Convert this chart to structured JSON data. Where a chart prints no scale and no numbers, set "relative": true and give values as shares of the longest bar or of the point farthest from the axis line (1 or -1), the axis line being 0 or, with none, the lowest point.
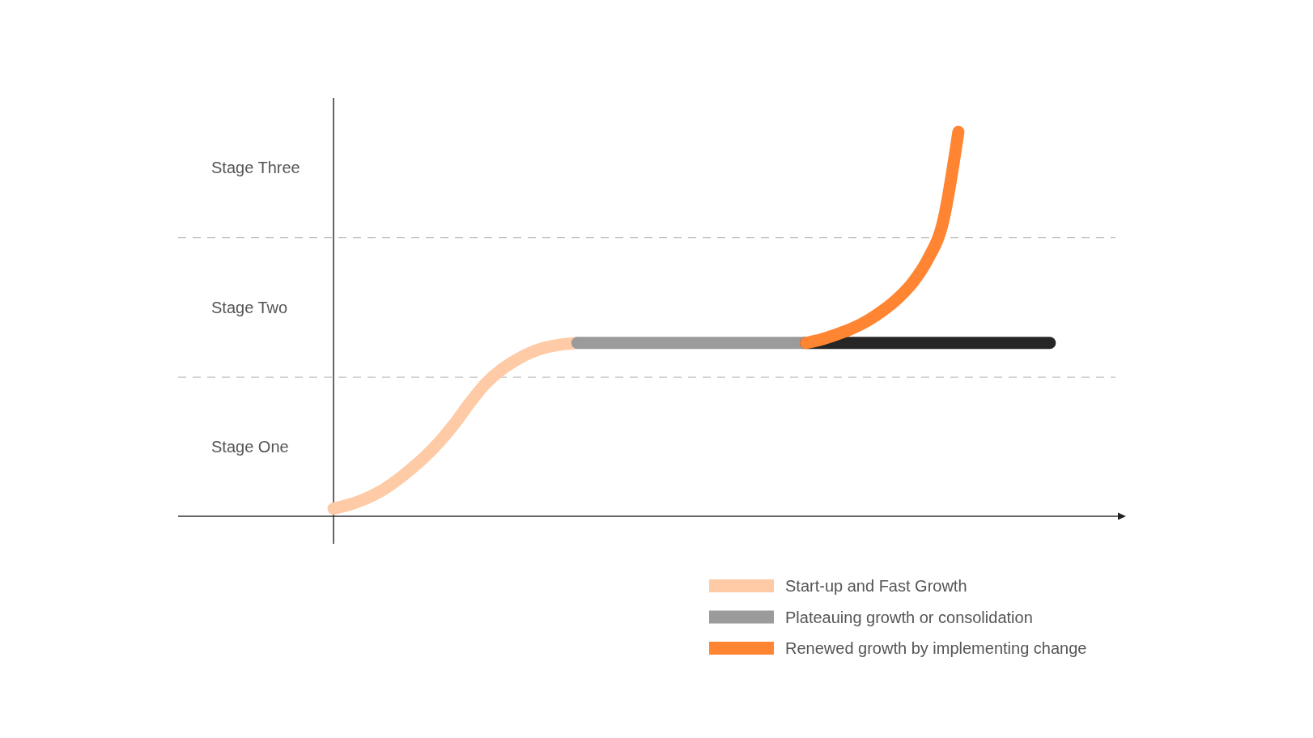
{
  "chart_data": {
    "type": "line",
    "relative": true,
    "categories": [
      null,
      null,
      null,
      null,
      null,
      null,
      null,
      null,
      null,
      null,
      null,
      null,
      null,
      null,
      null,
      null,
      null,
      null,
      null,
      null,
      null,
      null,
      null,
      null,
      null,
      null,
      null,
      null,
      null,
      null,
      null,
      null,
      null,
      null,
      null,
      null,
      null,
      null,
      null,
      null,
      null,
      null,
      null,
      null,
      null,
      null,
      null,
      null,
      null,
      null,
      null,
      null,
      null
    ],
    "series": [
      {
        "name": "Start-up and Fast Growth",
        "color": "#ffcaa6",
        "values": [
          0.02,
          0.03,
          0.044,
          0.063,
          0.089,
          0.12,
          0.155,
          0.196,
          0.244,
          0.298,
          0.346,
          0.381,
          0.407,
          0.427,
          0.44,
          0.447,
          0.451,
          null,
          null,
          null,
          null,
          null,
          null,
          null,
          null,
          null,
          null,
          null,
          null,
          null,
          null,
          null,
          null,
          null,
          null,
          null,
          null,
          null,
          null,
          null,
          null,
          null,
          null,
          null,
          null,
          null,
          null,
          null,
          null,
          null,
          null,
          null,
          null
        ]
      },
      {
        "name": "Plateauing growth or consolidation",
        "color": "#9b9b9b",
        "values": [
          null,
          null,
          null,
          null,
          null,
          null,
          null,
          null,
          null,
          null,
          null,
          null,
          null,
          null,
          null,
          null,
          0.451,
          0.451,
          0.451,
          0.451,
          0.451,
          0.451,
          0.451,
          0.451,
          0.451,
          0.451,
          0.451,
          0.451,
          0.451,
          0.451,
          0.451,
          0.451,
          null,
          null,
          null,
          null,
          null,
          null,
          null,
          null,
          null,
          null,
          null,
          null,
          null,
          null,
          null,
          null,
          null,
          null,
          null,
          null,
          null
        ]
      },
      {
        "color": "#262626",
        "values": [
          null,
          null,
          null,
          null,
          null,
          null,
          null,
          null,
          null,
          null,
          null,
          null,
          null,
          null,
          null,
          null,
          null,
          null,
          null,
          null,
          null,
          null,
          null,
          null,
          null,
          null,
          null,
          null,
          null,
          null,
          null,
          0.451,
          0.451,
          0.451,
          0.451,
          0.451,
          0.451,
          0.451,
          0.451,
          0.451,
          0.451,
          0.451,
          0.451,
          0.451,
          0.451,
          0.451,
          0.451,
          0.451,
          null,
          null,
          null,
          null,
          null
        ]
      },
      {
        "name": "Renewed growth by implementing change",
        "color": "#ff8533",
        "values": [
          null,
          null,
          null,
          null,
          null,
          null,
          null,
          null,
          null,
          null,
          null,
          null,
          null,
          null,
          null,
          null,
          null,
          null,
          null,
          null,
          null,
          null,
          null,
          null,
          null,
          null,
          null,
          null,
          null,
          null,
          null,
          0.451,
          0.46,
          0.473,
          0.488,
          0.508,
          0.534,
          0.566,
          0.608,
          0.669,
          0.767,
          1,
          null,
          null,
          null,
          null,
          null,
          null,
          null,
          null,
          null,
          null,
          null
        ]
      }
    ],
    "ref_lines": [
      {
        "axis": "y",
        "value": 0.362,
        "color": "#c4c4c4",
        "line_style": "dashed"
      },
      {
        "axis": "y",
        "value": 0.725,
        "color": "#c4c4c4",
        "line_style": "dashed"
      }
    ],
    "annotations": [
      "Stage One",
      "Stage Two",
      "Stage Three"
    ],
    "legend": "bottom right",
    "line_style": "solid"
  }
}
